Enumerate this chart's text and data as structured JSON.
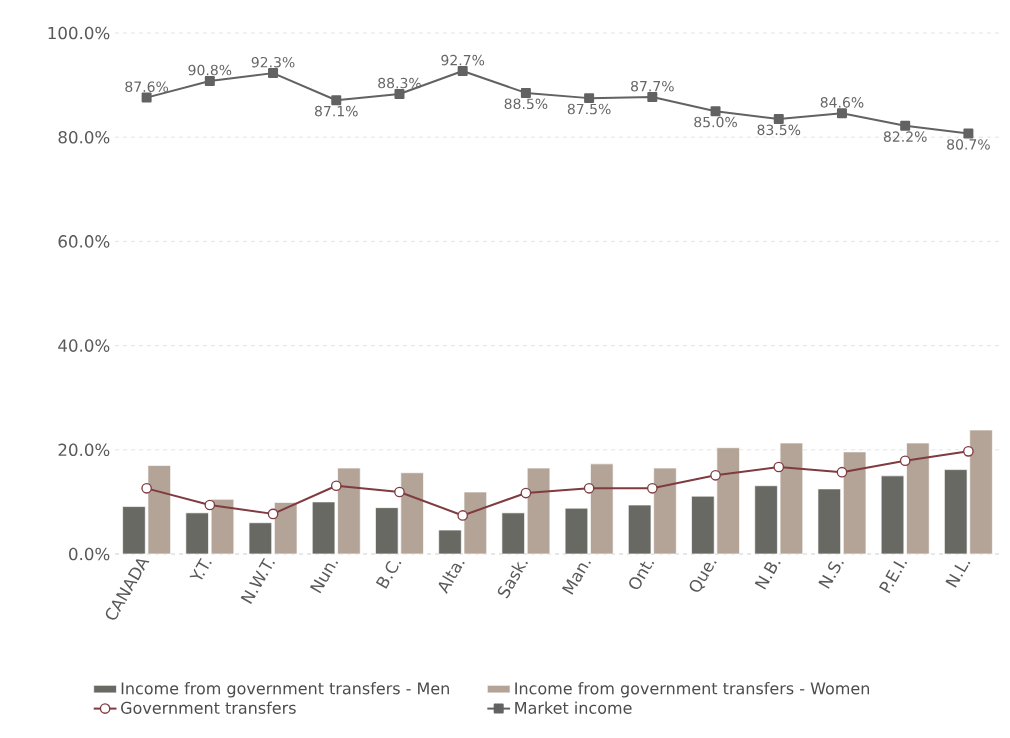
{
  "chart_data": {
    "type": "bar",
    "categories": [
      "CANADA",
      "Y.T.",
      "N.W.T.",
      "Nun.",
      "B.C.",
      "Alta.",
      "Sask.",
      "Man.",
      "Ont.",
      "Que.",
      "N.B.",
      "N.S.",
      "P.E.I.",
      "N.L."
    ],
    "series": [
      {
        "name": "Income from government transfers - Men",
        "color": "#686963",
        "values": [
          9.1,
          7.9,
          6.0,
          10.0,
          8.9,
          4.6,
          7.9,
          8.8,
          9.4,
          11.1,
          13.1,
          12.5,
          15.0,
          16.2
        ]
      },
      {
        "name": "Income from government transfers - Women",
        "color": "#b3a497",
        "values": [
          17.0,
          10.5,
          9.9,
          16.5,
          15.6,
          11.9,
          16.5,
          17.3,
          16.5,
          20.4,
          21.3,
          19.6,
          21.3,
          23.8
        ]
      },
      {
        "name": "Government transfers",
        "type": "line",
        "color": "#7f3b3f",
        "marker": "circle",
        "values": [
          12.6,
          9.4,
          7.7,
          13.1,
          11.9,
          7.4,
          11.7,
          12.6,
          12.6,
          15.1,
          16.7,
          15.7,
          17.9,
          19.7
        ]
      },
      {
        "name": "Market income",
        "type": "line",
        "color": "#626262",
        "marker": "square",
        "values": [
          87.6,
          90.8,
          92.3,
          87.1,
          88.3,
          92.7,
          88.5,
          87.5,
          87.7,
          85.0,
          83.5,
          84.6,
          82.2,
          80.7
        ],
        "value_labels": [
          "87.6%",
          "90.8%",
          "92.3%",
          "87.1%",
          "88.3%",
          "92.7%",
          "88.5%",
          "87.5%",
          "87.7%",
          "85.0%",
          "83.5%",
          "84.6%",
          "82.2%",
          "80.7%"
        ]
      }
    ],
    "ylim": [
      0,
      100
    ],
    "yticks": [
      {
        "value": 0,
        "label": "0.0%"
      },
      {
        "value": 20,
        "label": "20.0%"
      },
      {
        "value": 40,
        "label": "40.0%"
      },
      {
        "value": 60,
        "label": "60.0%"
      },
      {
        "value": 80,
        "label": "80.0%"
      },
      {
        "value": 100,
        "label": "100.0%"
      }
    ],
    "grid": "y",
    "legend": "bottom"
  }
}
